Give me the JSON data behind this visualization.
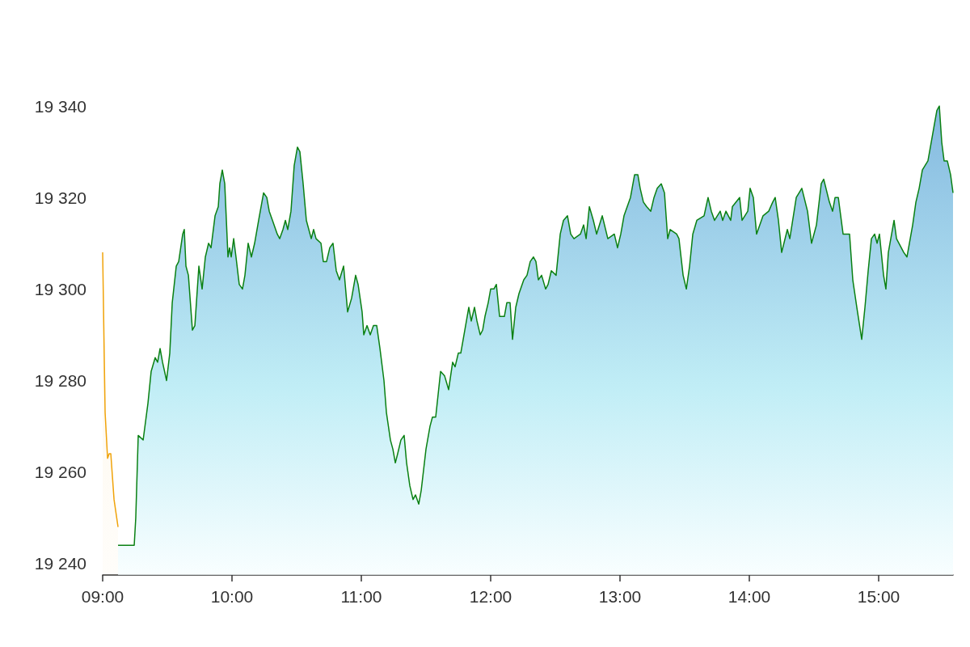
{
  "chart_data": {
    "type": "area",
    "xlim": [
      9.0,
      15.575
    ],
    "ylim": [
      19237.5,
      19340
    ],
    "xticks": [
      {
        "value": 9,
        "label": "09:00"
      },
      {
        "value": 10,
        "label": "10:00"
      },
      {
        "value": 11,
        "label": "11:00"
      },
      {
        "value": 12,
        "label": "12:00"
      },
      {
        "value": 13,
        "label": "13:00"
      },
      {
        "value": 14,
        "label": "14:00"
      },
      {
        "value": 15,
        "label": "15:00"
      }
    ],
    "yticks": [
      {
        "value": 19240,
        "label": "19 240"
      },
      {
        "value": 19260,
        "label": "19 260"
      },
      {
        "value": 19280,
        "label": "19 280"
      },
      {
        "value": 19300,
        "label": "19 300"
      },
      {
        "value": 19320,
        "label": "19 320"
      },
      {
        "value": 19340,
        "label": "19 340"
      }
    ],
    "grid": false,
    "marker": "none",
    "line_style": "solid",
    "series": [
      {
        "color": "#f0a30a",
        "x": [
          9.0,
          9.019,
          9.038,
          9.05,
          9.063,
          9.088,
          9.119
        ],
        "values": [
          19308,
          19273,
          19263,
          19264,
          19264,
          19254,
          19248
        ]
      },
      {
        "color": "#0a8012",
        "x": [
          9.119,
          9.244,
          9.256,
          9.275,
          9.313,
          9.35,
          9.375,
          9.406,
          9.425,
          9.444,
          9.463,
          9.494,
          9.519,
          9.538,
          9.569,
          9.588,
          9.619,
          9.631,
          9.644,
          9.663,
          9.694,
          9.713,
          9.744,
          9.769,
          9.794,
          9.819,
          9.838,
          9.869,
          9.894,
          9.906,
          9.925,
          9.944,
          9.969,
          9.981,
          9.994,
          10.013,
          10.031,
          10.056,
          10.081,
          10.1,
          10.125,
          10.15,
          10.175,
          10.206,
          10.244,
          10.269,
          10.288,
          10.313,
          10.35,
          10.369,
          10.394,
          10.413,
          10.431,
          10.456,
          10.481,
          10.506,
          10.525,
          10.55,
          10.575,
          10.613,
          10.631,
          10.65,
          10.688,
          10.706,
          10.731,
          10.756,
          10.781,
          10.806,
          10.831,
          10.863,
          10.894,
          10.925,
          10.956,
          10.975,
          11.006,
          11.019,
          11.044,
          11.069,
          11.094,
          11.119,
          11.144,
          11.175,
          11.194,
          11.225,
          11.244,
          11.263,
          11.281,
          11.306,
          11.331,
          11.35,
          11.375,
          11.4,
          11.419,
          11.444,
          11.463,
          11.5,
          11.531,
          11.55,
          11.575,
          11.594,
          11.613,
          11.644,
          11.675,
          11.706,
          11.725,
          11.75,
          11.769,
          11.8,
          11.831,
          11.85,
          11.875,
          11.894,
          11.919,
          11.938,
          11.956,
          11.981,
          12.0,
          12.025,
          12.044,
          12.069,
          12.106,
          12.125,
          12.15,
          12.169,
          12.194,
          12.219,
          12.256,
          12.281,
          12.306,
          12.331,
          12.35,
          12.369,
          12.394,
          12.425,
          12.444,
          12.469,
          12.506,
          12.538,
          12.563,
          12.594,
          12.619,
          12.644,
          12.694,
          12.719,
          12.738,
          12.763,
          12.794,
          12.819,
          12.863,
          12.906,
          12.956,
          12.981,
          13.006,
          13.031,
          13.081,
          13.113,
          13.138,
          13.156,
          13.181,
          13.206,
          13.238,
          13.263,
          13.288,
          13.319,
          13.344,
          13.369,
          13.388,
          13.438,
          13.456,
          13.488,
          13.513,
          13.538,
          13.563,
          13.594,
          13.65,
          13.681,
          13.706,
          13.731,
          13.775,
          13.794,
          13.819,
          13.856,
          13.869,
          13.925,
          13.944,
          13.988,
          14.006,
          14.031,
          14.056,
          14.106,
          14.15,
          14.181,
          14.2,
          14.225,
          14.25,
          14.294,
          14.313,
          14.363,
          14.406,
          14.45,
          14.481,
          14.519,
          14.556,
          14.575,
          14.619,
          14.644,
          14.663,
          14.688,
          14.725,
          14.775,
          14.8,
          14.831,
          14.869,
          14.894,
          14.919,
          14.944,
          14.969,
          14.988,
          15.006,
          15.038,
          15.056,
          15.075,
          15.119,
          15.138,
          15.194,
          15.219,
          15.263,
          15.288,
          15.313,
          15.338,
          15.381,
          15.406,
          15.431,
          15.45,
          15.469,
          15.488,
          15.506,
          15.531,
          15.556,
          15.575
        ],
        "values": [
          19244,
          19244,
          19250,
          19268,
          19267,
          19275,
          19282,
          19285,
          19284,
          19287,
          19284,
          19280,
          19286,
          19297,
          19305,
          19306,
          19312,
          19313,
          19305,
          19303,
          19291,
          19292,
          19305,
          19300,
          19307,
          19310,
          19309,
          19316,
          19318,
          19323,
          19326,
          19323,
          19307,
          19309,
          19307,
          19311,
          19307,
          19301,
          19300,
          19303,
          19310,
          19307,
          19310,
          19315,
          19321,
          19320,
          19317,
          19315,
          19312,
          19311,
          19313,
          19315,
          19313,
          19317,
          19327,
          19331,
          19330,
          19323,
          19315,
          19311,
          19313,
          19311,
          19310,
          19306,
          19306,
          19309,
          19310,
          19304,
          19302,
          19305,
          19295,
          19298,
          19303,
          19301,
          19295,
          19290,
          19292,
          19290,
          19292,
          19292,
          19287,
          19280,
          19273,
          19267,
          19265,
          19262,
          19264,
          19267,
          19268,
          19262,
          19257,
          19254,
          19255,
          19253,
          19256,
          19265,
          19270,
          19272,
          19272,
          19277,
          19282,
          19281,
          19278,
          19284,
          19283,
          19286,
          19286,
          19291,
          19296,
          19293,
          19296,
          19293,
          19290,
          19291,
          19294,
          19297,
          19300,
          19300,
          19301,
          19294,
          19294,
          19297,
          19297,
          19289,
          19296,
          19299,
          19302,
          19303,
          19306,
          19307,
          19306,
          19302,
          19303,
          19300,
          19301,
          19304,
          19303,
          19312,
          19315,
          19316,
          19312,
          19311,
          19312,
          19314,
          19311,
          19318,
          19315,
          19312,
          19316,
          19311,
          19312,
          19309,
          19312,
          19316,
          19320,
          19325,
          19325,
          19322,
          19319,
          19318,
          19317,
          19320,
          19322,
          19323,
          19321,
          19311,
          19313,
          19312,
          19311,
          19303,
          19300,
          19305,
          19312,
          19315,
          19316,
          19320,
          19317,
          19315,
          19317,
          19315,
          19317,
          19315,
          19318,
          19320,
          19315,
          19317,
          19322,
          19320,
          19312,
          19316,
          19317,
          19319,
          19320,
          19315,
          19308,
          19313,
          19311,
          19320,
          19322,
          19317,
          19310,
          19314,
          19323,
          19324,
          19319,
          19317,
          19320,
          19320,
          19312,
          19312,
          19302,
          19296,
          19289,
          19296,
          19304,
          19311,
          19312,
          19310,
          19312,
          19303,
          19300,
          19308,
          19315,
          19311,
          19308,
          19307,
          19314,
          19319,
          19322,
          19326,
          19328,
          19332,
          19336,
          19339,
          19340,
          19332,
          19328,
          19328,
          19325,
          19321
        ]
      }
    ]
  }
}
